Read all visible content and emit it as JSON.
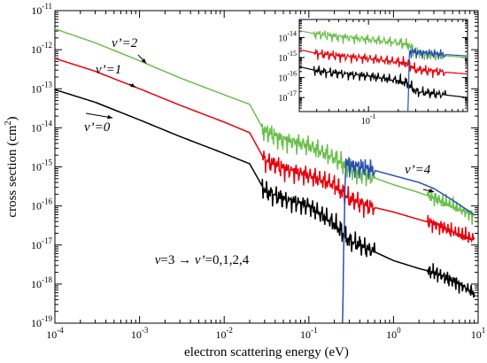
{
  "chart_data": [
    {
      "type": "line",
      "title": "",
      "xlabel": "electron scattering energy (eV)",
      "ylabel": "cross section (cm",
      "ylabel_sup": "2",
      "ylabel_close": ")",
      "x_scale": "log",
      "y_scale": "log",
      "xlim": [
        0.0001,
        10
      ],
      "ylim": [
        1e-19,
        1e-11
      ],
      "x_ticks": [
        {
          "value": 0.0001,
          "base": "10",
          "exp": "-4"
        },
        {
          "value": 0.001,
          "base": "10",
          "exp": "-3"
        },
        {
          "value": 0.01,
          "base": "10",
          "exp": "-2"
        },
        {
          "value": 0.1,
          "base": "10",
          "exp": "-1"
        },
        {
          "value": 1,
          "base": "10",
          "exp": "0"
        },
        {
          "value": 10,
          "base": "10",
          "exp": "1"
        }
      ],
      "y_ticks": [
        {
          "value": 1e-19,
          "base": "10",
          "exp": "-19"
        },
        {
          "value": 1e-18,
          "base": "10",
          "exp": "-18"
        },
        {
          "value": 1e-17,
          "base": "10",
          "exp": "-17"
        },
        {
          "value": 1e-16,
          "base": "10",
          "exp": "-16"
        },
        {
          "value": 1e-15,
          "base": "10",
          "exp": "-15"
        },
        {
          "value": 1e-14,
          "base": "10",
          "exp": "-14"
        },
        {
          "value": 1e-13,
          "base": "10",
          "exp": "-13"
        },
        {
          "value": 1e-12,
          "base": "10",
          "exp": "-12"
        },
        {
          "value": 1e-11,
          "base": "10",
          "exp": "-11"
        }
      ],
      "grid": false,
      "series": [
        {
          "name": "v'=0",
          "color": "#000000",
          "x": [
            0.0001,
            0.0003,
            0.001,
            0.003,
            0.01,
            0.02,
            0.03,
            0.05,
            0.1,
            0.2,
            0.3,
            0.5,
            1,
            2,
            3,
            5,
            9
          ],
          "y": [
            9.5e-14,
            4.5e-14,
            1.6e-14,
            6e-15,
            2.2e-15,
            1.2e-15,
            2.5e-16,
            1.5e-16,
            1e-16,
            3.5e-17,
            1.3e-17,
            8e-18,
            4e-18,
            2.5e-18,
            2e-18,
            1.2e-18,
            6e-19
          ]
        },
        {
          "name": "v'=1",
          "color": "#e8000b",
          "x": [
            0.0001,
            0.0003,
            0.001,
            0.003,
            0.01,
            0.02,
            0.03,
            0.05,
            0.1,
            0.2,
            0.3,
            0.5,
            1,
            2,
            3,
            5,
            9
          ],
          "y": [
            6e-13,
            2.8e-13,
            1e-13,
            3.8e-14,
            1.4e-14,
            7.5e-15,
            1.5e-15,
            9e-16,
            6e-16,
            3.5e-16,
            1.5e-16,
            1e-16,
            7e-17,
            4.5e-17,
            3.5e-17,
            2.2e-17,
            1.4e-17
          ]
        },
        {
          "name": "v'=2",
          "color": "#6abf4b",
          "x": [
            0.0001,
            0.0003,
            0.001,
            0.003,
            0.01,
            0.02,
            0.03,
            0.05,
            0.1,
            0.2,
            0.3,
            0.5,
            1,
            2,
            3,
            5,
            9
          ],
          "y": [
            3.4e-12,
            1.5e-12,
            5.2e-13,
            1.9e-13,
            7e-14,
            4e-14,
            8e-15,
            5e-15,
            3.5e-15,
            1.7e-15,
            9e-16,
            6e-16,
            3.5e-16,
            2.2e-16,
            1.6e-16,
            1e-16,
            5.5e-17
          ]
        },
        {
          "name": "v'=4",
          "color": "#2b4fb0",
          "x": [
            0.25,
            0.27,
            0.3,
            0.5,
            1,
            2,
            3,
            5,
            9
          ],
          "y": [
            1e-19,
            1.2e-15,
            1.1e-15,
            9e-16,
            6e-16,
            4e-16,
            2.8e-16,
            1.4e-16,
            6e-17
          ]
        }
      ],
      "annotations": [
        {
          "text": "v’=0",
          "target_x": 0.00048,
          "target_y": 1.8e-14
        },
        {
          "text": "v’=1",
          "target_x": 0.0009,
          "target_y": 1.1e-13
        },
        {
          "text": "v’=2",
          "target_x": 0.0012,
          "target_y": 4.5e-13
        },
        {
          "text": "v’=4",
          "target_x": 3.0,
          "target_y": 2.3e-16
        }
      ],
      "caption_parts": [
        "v",
        "=3 → ",
        "v’",
        "=0,1,2,4"
      ]
    },
    {
      "type": "line",
      "role": "inset",
      "x_scale": "log",
      "y_scale": "log",
      "xlim": [
        0.02,
        1.0
      ],
      "ylim": [
        2e-18,
        8e-14
      ],
      "x_ticks": [
        {
          "value": 0.1,
          "base": "10",
          "exp": "-1"
        }
      ],
      "y_ticks": [
        {
          "value": 1e-17,
          "base": "10",
          "exp": "-17"
        },
        {
          "value": 1e-16,
          "base": "10",
          "exp": "-16"
        },
        {
          "value": 1e-15,
          "base": "10",
          "exp": "-15"
        },
        {
          "value": 1e-14,
          "base": "10",
          "exp": "-14"
        }
      ],
      "series": [
        {
          "name": "v'=0",
          "color": "#000000",
          "x": [
            0.02,
            0.03,
            0.05,
            0.1,
            0.2,
            0.25,
            0.3,
            0.5,
            1.0
          ],
          "y": [
            3.5e-16,
            2.2e-16,
            1.6e-16,
            1.2e-16,
            7e-17,
            5e-17,
            2e-17,
            1.5e-17,
            1e-17
          ]
        },
        {
          "name": "v'=1",
          "color": "#e8000b",
          "x": [
            0.02,
            0.03,
            0.05,
            0.1,
            0.2,
            0.25,
            0.3,
            0.5,
            1.0
          ],
          "y": [
            2.5e-15,
            1.6e-15,
            1.2e-15,
            9e-16,
            6e-16,
            5e-16,
            2.5e-16,
            2e-16,
            1.5e-16
          ]
        },
        {
          "name": "v'=2",
          "color": "#6abf4b",
          "x": [
            0.02,
            0.03,
            0.05,
            0.1,
            0.2,
            0.25,
            0.3,
            0.5,
            1.0
          ],
          "y": [
            2.2e-14,
            1.5e-14,
            1.1e-14,
            8e-15,
            5.5e-15,
            4.5e-15,
            1.8e-15,
            1.3e-15,
            1e-15
          ]
        },
        {
          "name": "v'=4",
          "color": "#2b4fb0",
          "x": [
            0.25,
            0.26,
            0.3,
            0.5,
            1.0
          ],
          "y": [
            2.1e-18,
            2e-15,
            1.8e-15,
            1.5e-15,
            1.2e-15
          ]
        }
      ]
    }
  ]
}
